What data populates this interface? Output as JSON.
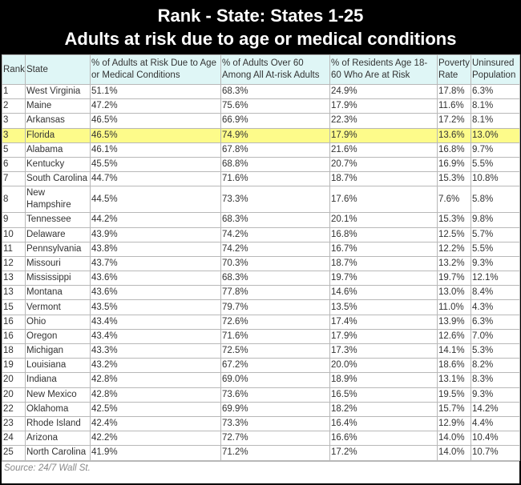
{
  "header": {
    "title_lines": [
      "Rank - State: States 1-25",
      "Adults at risk due to age or medical conditions"
    ]
  },
  "table": {
    "columns": [
      "Rank",
      "State",
      "% of Adults at Risk Due to Age or Medical Conditions",
      "% of Adults Over 60 Among All At-risk Adults",
      "% of Residents Age 18-60 Who Are at Risk",
      "Poverty Rate",
      "Uninsured Population"
    ],
    "rows": [
      [
        "1",
        "West Virginia",
        "51.1%",
        "68.3%",
        "24.9%",
        "17.8%",
        "6.3%"
      ],
      [
        "2",
        "Maine",
        "47.2%",
        "75.6%",
        "17.9%",
        "11.6%",
        "8.1%"
      ],
      [
        "3",
        "Arkansas",
        "46.5%",
        "66.9%",
        "22.3%",
        "17.2%",
        "8.1%"
      ],
      [
        "3",
        "Florida",
        "46.5%",
        "74.9%",
        "17.9%",
        "13.6%",
        "13.0%"
      ],
      [
        "5",
        "Alabama",
        "46.1%",
        "67.8%",
        "21.6%",
        "16.8%",
        "9.7%"
      ],
      [
        "6",
        "Kentucky",
        "45.5%",
        "68.8%",
        "20.7%",
        "16.9%",
        "5.5%"
      ],
      [
        "7",
        "South Carolina",
        "44.7%",
        "71.6%",
        "18.7%",
        "15.3%",
        "10.8%"
      ],
      [
        "8",
        "New Hampshire",
        "44.5%",
        "73.3%",
        "17.6%",
        "7.6%",
        "5.8%"
      ],
      [
        "9",
        "Tennessee",
        "44.2%",
        "68.3%",
        "20.1%",
        "15.3%",
        "9.8%"
      ],
      [
        "10",
        "Delaware",
        "43.9%",
        "74.2%",
        "16.8%",
        "12.5%",
        "5.7%"
      ],
      [
        "11",
        "Pennsylvania",
        "43.8%",
        "74.2%",
        "16.7%",
        "12.2%",
        "5.5%"
      ],
      [
        "12",
        "Missouri",
        "43.7%",
        "70.3%",
        "18.7%",
        "13.2%",
        "9.3%"
      ],
      [
        "13",
        "Mississippi",
        "43.6%",
        "68.3%",
        "19.7%",
        "19.7%",
        "12.1%"
      ],
      [
        "13",
        "Montana",
        "43.6%",
        "77.8%",
        "14.6%",
        "13.0%",
        "8.4%"
      ],
      [
        "15",
        "Vermont",
        "43.5%",
        "79.7%",
        "13.5%",
        "11.0%",
        "4.3%"
      ],
      [
        "16",
        "Ohio",
        "43.4%",
        "72.6%",
        "17.4%",
        "13.9%",
        "6.3%"
      ],
      [
        "16",
        "Oregon",
        "43.4%",
        "71.6%",
        "17.9%",
        "12.6%",
        "7.0%"
      ],
      [
        "18",
        "Michigan",
        "43.3%",
        "72.5%",
        "17.3%",
        "14.1%",
        "5.3%"
      ],
      [
        "19",
        "Louisiana",
        "43.2%",
        "67.2%",
        "20.0%",
        "18.6%",
        "8.2%"
      ],
      [
        "20",
        "Indiana",
        "42.8%",
        "69.0%",
        "18.9%",
        "13.1%",
        "8.3%"
      ],
      [
        "20",
        "New Mexico",
        "42.8%",
        "73.6%",
        "16.5%",
        "19.5%",
        "9.3%"
      ],
      [
        "22",
        "Oklahoma",
        "42.5%",
        "69.9%",
        "18.2%",
        "15.7%",
        "14.2%"
      ],
      [
        "23",
        "Rhode Island",
        "42.4%",
        "73.3%",
        "16.4%",
        "12.9%",
        "4.4%"
      ],
      [
        "24",
        "Arizona",
        "42.2%",
        "72.7%",
        "16.6%",
        "14.0%",
        "10.4%"
      ],
      [
        "25",
        "North Carolina",
        "41.9%",
        "71.2%",
        "17.2%",
        "14.0%",
        "10.7%"
      ]
    ]
  },
  "footer": {
    "source": "Source: 24/7 Wall St."
  }
}
